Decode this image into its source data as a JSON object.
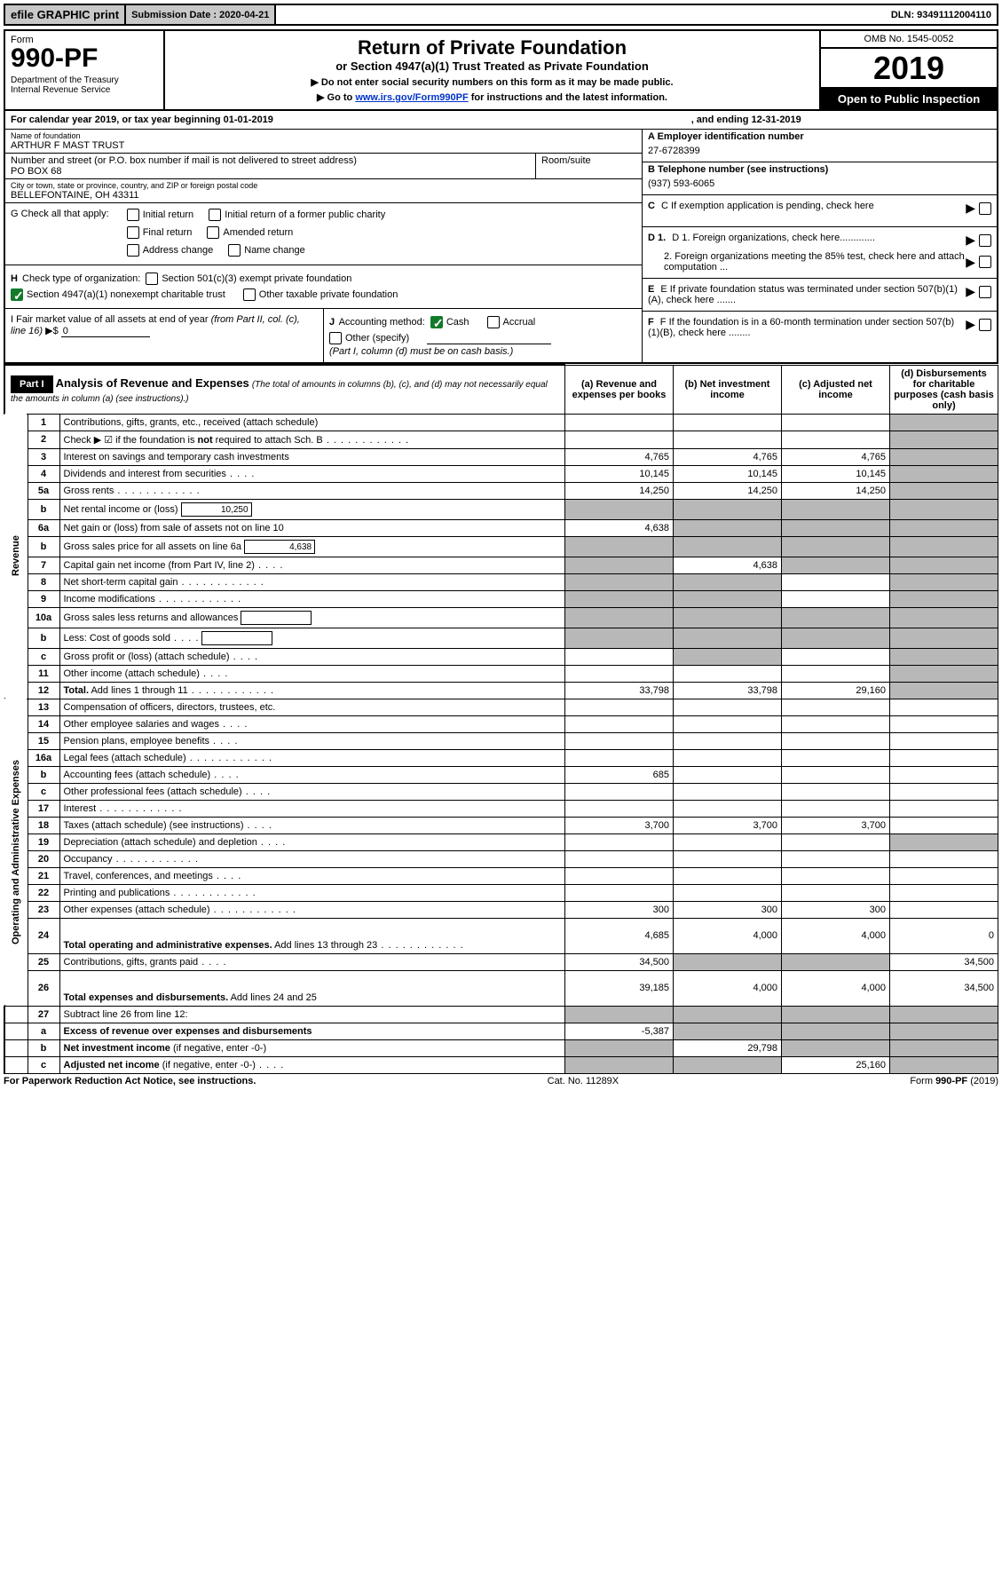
{
  "top": {
    "efile": "efile GRAPHIC print",
    "submission_label": "Submission Date : 2020-04-21",
    "dln": "DLN: 93491112004110"
  },
  "header": {
    "form_label": "Form",
    "form_number": "990-PF",
    "dept": "Department of the Treasury\nInternal Revenue Service",
    "title": "Return of Private Foundation",
    "subtitle": "or Section 4947(a)(1) Trust Treated as Private Foundation",
    "note1": "▶ Do not enter social security numbers on this form as it may be made public.",
    "note2_prefix": "▶ Go to ",
    "note2_link": "www.irs.gov/Form990PF",
    "note2_suffix": " for instructions and the latest information.",
    "omb": "OMB No. 1545-0052",
    "year": "2019",
    "open_public": "Open to Public Inspection"
  },
  "calendar": {
    "begin": "For calendar year 2019, or tax year beginning 01-01-2019",
    "end": ", and ending 12-31-2019"
  },
  "info": {
    "name_label": "Name of foundation",
    "name": "ARTHUR F MAST TRUST",
    "addr_label": "Number and street (or P.O. box number if mail is not delivered to street address)",
    "addr": "PO BOX 68",
    "room_label": "Room/suite",
    "city_label": "City or town, state or province, country, and ZIP or foreign postal code",
    "city": "BELLEFONTAINE, OH  43311",
    "g_label": "G Check all that apply:",
    "g_opts": [
      "Initial return",
      "Initial return of a former public charity",
      "Final return",
      "Amended return",
      "Address change",
      "Name change"
    ],
    "h_label": "H Check type of organization:",
    "h_opts": [
      "Section 501(c)(3) exempt private foundation",
      "Section 4947(a)(1) nonexempt charitable trust",
      "Other taxable private foundation"
    ],
    "i_label": "I Fair market value of all assets at end of year (from Part II, col. (c), line 16) ▶$ ",
    "i_value": "0",
    "j_label": "J Accounting method:",
    "j_opts": [
      "Cash",
      "Accrual",
      "Other (specify)"
    ],
    "j_note": "(Part I, column (d) must be on cash basis.)",
    "a_label": "A Employer identification number",
    "a_value": "27-6728399",
    "b_label": "B Telephone number (see instructions)",
    "b_value": "(937) 593-6065",
    "c_label": "C If exemption application is pending, check here",
    "d1_label": "D 1. Foreign organizations, check here.............",
    "d2_label": "2. Foreign organizations meeting the 85% test, check here and attach computation ...",
    "e_label": "E  If private foundation status was terminated under section 507(b)(1)(A), check here .......",
    "f_label": "F  If the foundation is in a 60-month termination under section 507(b)(1)(B), check here ........"
  },
  "part1": {
    "label": "Part I",
    "heading": "Analysis of Revenue and Expenses",
    "heading_note": "(The total of amounts in columns (b), (c), and (d) may not necessarily equal the amounts in column (a) (see instructions).)",
    "cols": {
      "a": "(a)   Revenue and expenses per books",
      "b": "(b)   Net investment income",
      "c": "(c)   Adjusted net income",
      "d": "(d)   Disbursements for charitable purposes (cash basis only)"
    }
  },
  "sections": {
    "revenue": "Revenue",
    "opadmin": "Operating and Administrative Expenses"
  },
  "rows": [
    {
      "n": "1",
      "desc": "Contributions, gifts, grants, etc., received (attach schedule)",
      "a": "",
      "b": "",
      "c": "",
      "d_shaded": true
    },
    {
      "n": "2",
      "desc": "Check ▶ ☑ if the foundation is <b>not</b> required to attach Sch. B",
      "a": "",
      "b": "",
      "c": "",
      "d_shaded": true,
      "dots": true,
      "html": true
    },
    {
      "n": "3",
      "desc": "Interest on savings and temporary cash investments",
      "a": "4,765",
      "b": "4,765",
      "c": "4,765",
      "d_shaded": true
    },
    {
      "n": "4",
      "desc": "Dividends and interest from securities",
      "a": "10,145",
      "b": "10,145",
      "c": "10,145",
      "d_shaded": true,
      "dots_short": true
    },
    {
      "n": "5a",
      "desc": "Gross rents",
      "a": "14,250",
      "b": "14,250",
      "c": "14,250",
      "d_shaded": true,
      "dots": true
    },
    {
      "n": "b",
      "desc": "Net rental income or (loss)",
      "inline_box": "10,250",
      "a_shaded": true,
      "b_shaded": true,
      "c_shaded": true,
      "d_shaded": true
    },
    {
      "n": "6a",
      "desc": "Net gain or (loss) from sale of assets not on line 10",
      "a": "4,638",
      "b_shaded": true,
      "c_shaded": true,
      "d_shaded": true
    },
    {
      "n": "b",
      "desc": "Gross sales price for all assets on line 6a",
      "inline_box": "4,638",
      "a_shaded": true,
      "b_shaded": true,
      "c_shaded": true,
      "d_shaded": true
    },
    {
      "n": "7",
      "desc": "Capital gain net income (from Part IV, line 2)",
      "a_shaded": true,
      "b": "4,638",
      "c_shaded": true,
      "d_shaded": true,
      "dots_short": true
    },
    {
      "n": "8",
      "desc": "Net short-term capital gain",
      "a_shaded": true,
      "b_shaded": true,
      "c": "",
      "d_shaded": true,
      "dots": true
    },
    {
      "n": "9",
      "desc": "Income modifications",
      "a_shaded": true,
      "b_shaded": true,
      "c": "",
      "d_shaded": true,
      "dots": true
    },
    {
      "n": "10a",
      "desc": "Gross sales less returns and allowances",
      "inline_box": "",
      "a_shaded": true,
      "b_shaded": true,
      "c_shaded": true,
      "d_shaded": true
    },
    {
      "n": "b",
      "desc": "Less: Cost of goods sold",
      "inline_box": "",
      "a_shaded": true,
      "b_shaded": true,
      "c_shaded": true,
      "d_shaded": true,
      "dots_short": true
    },
    {
      "n": "c",
      "desc": "Gross profit or (loss) (attach schedule)",
      "a": "",
      "b_shaded": true,
      "c": "",
      "d_shaded": true,
      "dots_short": true
    },
    {
      "n": "11",
      "desc": "Other income (attach schedule)",
      "a": "",
      "b": "",
      "c": "",
      "d_shaded": true,
      "dots_short": true
    },
    {
      "n": "12",
      "desc": "<b>Total.</b> Add lines 1 through 11",
      "a": "33,798",
      "b": "33,798",
      "c": "29,160",
      "d_shaded": true,
      "dots": true,
      "html": true
    }
  ],
  "exp_rows": [
    {
      "n": "13",
      "desc": "Compensation of officers, directors, trustees, etc.",
      "a": "",
      "b": "",
      "c": "",
      "d": ""
    },
    {
      "n": "14",
      "desc": "Other employee salaries and wages",
      "a": "",
      "b": "",
      "c": "",
      "d": "",
      "dots_short": true
    },
    {
      "n": "15",
      "desc": "Pension plans, employee benefits",
      "a": "",
      "b": "",
      "c": "",
      "d": "",
      "dots_short": true
    },
    {
      "n": "16a",
      "desc": "Legal fees (attach schedule)",
      "a": "",
      "b": "",
      "c": "",
      "d": "",
      "dots": true
    },
    {
      "n": "b",
      "desc": "Accounting fees (attach schedule)",
      "a": "685",
      "b": "",
      "c": "",
      "d": "",
      "dots_short": true
    },
    {
      "n": "c",
      "desc": "Other professional fees (attach schedule)",
      "a": "",
      "b": "",
      "c": "",
      "d": "",
      "dots_short": true
    },
    {
      "n": "17",
      "desc": "Interest",
      "a": "",
      "b": "",
      "c": "",
      "d": "",
      "dots": true
    },
    {
      "n": "18",
      "desc": "Taxes (attach schedule) (see instructions)",
      "a": "3,700",
      "b": "3,700",
      "c": "3,700",
      "d": "",
      "dots_short": true
    },
    {
      "n": "19",
      "desc": "Depreciation (attach schedule) and depletion",
      "a": "",
      "b": "",
      "c": "",
      "d_shaded": true,
      "dots_short": true
    },
    {
      "n": "20",
      "desc": "Occupancy",
      "a": "",
      "b": "",
      "c": "",
      "d": "",
      "dots": true
    },
    {
      "n": "21",
      "desc": "Travel, conferences, and meetings",
      "a": "",
      "b": "",
      "c": "",
      "d": "",
      "dots_short": true
    },
    {
      "n": "22",
      "desc": "Printing and publications",
      "a": "",
      "b": "",
      "c": "",
      "d": "",
      "dots": true
    },
    {
      "n": "23",
      "desc": "Other expenses (attach schedule)",
      "a": "300",
      "b": "300",
      "c": "300",
      "d": "",
      "dots": true
    },
    {
      "n": "24",
      "desc": "<b>Total operating and administrative expenses.</b> Add lines 13 through 23",
      "a": "4,685",
      "b": "4,000",
      "c": "4,000",
      "d": "0",
      "dots": true,
      "html": true,
      "tall": true
    },
    {
      "n": "25",
      "desc": "Contributions, gifts, grants paid",
      "a": "34,500",
      "b_shaded": true,
      "c_shaded": true,
      "d": "34,500",
      "dots_short": true
    },
    {
      "n": "26",
      "desc": "<b>Total expenses and disbursements.</b> Add lines 24 and 25",
      "a": "39,185",
      "b": "4,000",
      "c": "4,000",
      "d": "34,500",
      "html": true,
      "tall": true
    }
  ],
  "final_rows": [
    {
      "n": "27",
      "desc": "Subtract line 26 from line 12:",
      "a_shaded": true,
      "b_shaded": true,
      "c_shaded": true,
      "d_shaded": true
    },
    {
      "n": "a",
      "desc": "<b>Excess of revenue over expenses and disbursements</b>",
      "a": "-5,387",
      "b_shaded": true,
      "c_shaded": true,
      "d_shaded": true,
      "html": true
    },
    {
      "n": "b",
      "desc": "<b>Net investment income</b> (if negative, enter -0-)",
      "a_shaded": true,
      "b": "29,798",
      "c_shaded": true,
      "d_shaded": true,
      "html": true
    },
    {
      "n": "c",
      "desc": "<b>Adjusted net income</b> (if negative, enter -0-)",
      "a_shaded": true,
      "b_shaded": true,
      "c": "25,160",
      "d_shaded": true,
      "html": true,
      "dots_short": true
    }
  ],
  "footer": {
    "left": "For Paperwork Reduction Act Notice, see instructions.",
    "cat": "Cat. No. 11289X",
    "form": "Form 990-PF (2019)"
  }
}
